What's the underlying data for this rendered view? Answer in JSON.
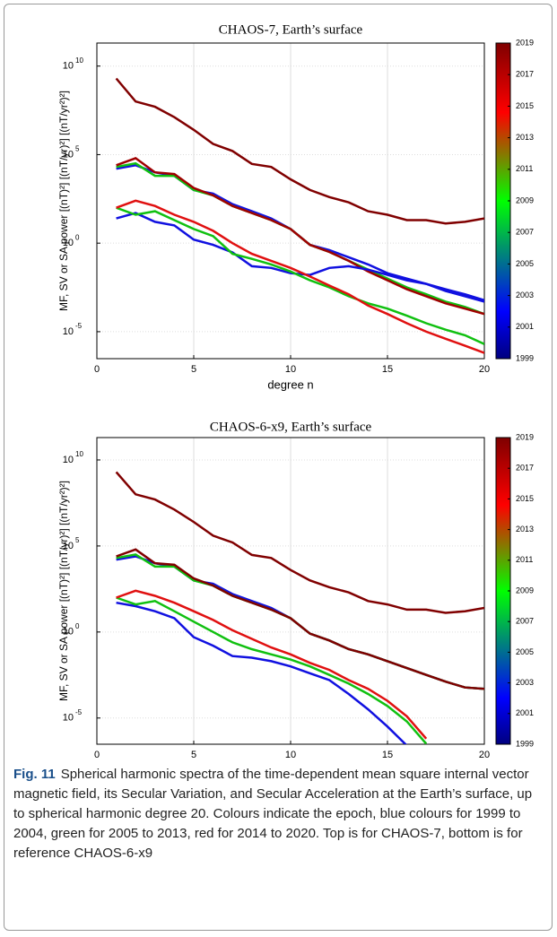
{
  "chart_data": [
    {
      "type": "line",
      "title": "CHAOS-7, Earth’s surface",
      "xlabel": "degree n",
      "ylabel": "MF, SV or SA power [(nT)²] [(nT/yr)²] [(nT/yr²)²]",
      "log_y": true,
      "grid": true,
      "xlim": [
        0,
        20
      ],
      "xticks": [
        0,
        5,
        10,
        15,
        20
      ],
      "ylim": [
        3e-07,
        200000000000.0
      ],
      "yticks": [
        {
          "value": 1e-05,
          "label": "10",
          "exponent": "-5"
        },
        {
          "value": 1,
          "label": "10",
          "exponent": "0"
        },
        {
          "value": 100000.0,
          "label": "10",
          "exponent": "5"
        },
        {
          "value": 10000000000.0,
          "label": "10",
          "exponent": "10"
        }
      ],
      "colorbar": {
        "lim": [
          1999,
          2019
        ],
        "ticks": [
          1999,
          2001,
          2003,
          2005,
          2007,
          2009,
          2011,
          2013,
          2015,
          2017,
          2019
        ]
      },
      "x": [
        1,
        2,
        3,
        4,
        5,
        6,
        7,
        8,
        9,
        10,
        11,
        12,
        13,
        14,
        15,
        16,
        17,
        18,
        19,
        20
      ],
      "series": [
        {
          "color": "#800000",
          "values": [
            2000000000.0,
            100000000.0,
            50000000.0,
            13000000.0,
            2500000.0,
            400000.0,
            160000.0,
            30000.0,
            20000.0,
            4000.0,
            1000.0,
            400,
            200,
            63,
            40,
            20,
            20,
            13,
            16,
            25
          ]
        },
        {
          "color": "#1010e0",
          "values": [
            16000.0,
            25000.0,
            10000.0,
            6300.0,
            1000.0,
            630,
            160,
            63,
            25,
            6.3,
            0.8,
            0.4,
            0.16,
            0.063,
            0.02,
            0.01,
            0.005,
            0.002,
            0.001,
            0.0005
          ]
        },
        {
          "color": "#10c010",
          "values": [
            20000.0,
            32000.0,
            6300.0,
            6300.0,
            1000.0,
            500,
            126,
            50,
            20,
            6.3,
            0.8,
            0.32,
            0.1,
            0.032,
            0.01,
            0.0032,
            0.0013,
            0.0005,
            0.00025,
            0.0001
          ]
        },
        {
          "color": "#a00000",
          "values": [
            25000.0,
            63000.0,
            10000.0,
            8000.0,
            1300.0,
            500,
            126,
            50,
            20,
            6.3,
            0.8,
            0.32,
            0.1,
            0.025,
            0.008,
            0.0025,
            0.001,
            0.0004,
            0.0002,
            0.0001
          ]
        },
        {
          "color": "#1010e0",
          "values": [
            25,
            50,
            16,
            10,
            1.6,
            0.8,
            0.3,
            0.05,
            0.04,
            0.02,
            0.016,
            0.04,
            0.05,
            0.032,
            0.016,
            0.008,
            0.005,
            0.0025,
            0.0013,
            0.0006
          ]
        },
        {
          "color": "#10c010",
          "values": [
            100,
            40,
            63,
            20,
            6.3,
            2.5,
            0.25,
            0.13,
            0.063,
            0.025,
            0.008,
            0.0032,
            0.001,
            0.0004,
            0.0002,
            8e-05,
            3e-05,
            1.3e-05,
            6.3e-06,
            2e-06
          ]
        },
        {
          "color": "#e01010",
          "values": [
            100,
            250,
            126,
            40,
            16,
            5,
            1,
            0.25,
            0.1,
            0.04,
            0.013,
            0.004,
            0.0013,
            0.0003,
            0.0001,
            3e-05,
            1e-05,
            4e-06,
            1.6e-06,
            6.3e-07
          ]
        }
      ]
    },
    {
      "type": "line",
      "title": "CHAOS-6-x9, Earth’s surface",
      "xlabel": "degree n",
      "ylabel": "MF, SV or SA power [(nT)²] [(nT/yr)²] [(nT/yr²)²]",
      "log_y": true,
      "grid": true,
      "xlim": [
        0,
        20
      ],
      "xticks": [
        0,
        5,
        10,
        15,
        20
      ],
      "ylim": [
        3e-07,
        200000000000.0
      ],
      "yticks": [
        {
          "value": 1e-05,
          "label": "10",
          "exponent": "-5"
        },
        {
          "value": 1,
          "label": "10",
          "exponent": "0"
        },
        {
          "value": 100000.0,
          "label": "10",
          "exponent": "5"
        },
        {
          "value": 10000000000.0,
          "label": "10",
          "exponent": "10"
        }
      ],
      "colorbar": {
        "lim": [
          1999,
          2019
        ],
        "ticks": [
          1999,
          2001,
          2003,
          2005,
          2007,
          2009,
          2011,
          2013,
          2015,
          2017,
          2019
        ]
      },
      "x": [
        1,
        2,
        3,
        4,
        5,
        6,
        7,
        8,
        9,
        10,
        11,
        12,
        13,
        14,
        15,
        16,
        17,
        18,
        19,
        20
      ],
      "series": [
        {
          "color": "#800000",
          "values": [
            2000000000.0,
            100000000.0,
            50000000.0,
            13000000.0,
            2500000.0,
            400000.0,
            160000.0,
            30000.0,
            20000.0,
            4000.0,
            1000.0,
            400,
            200,
            63,
            40,
            20,
            20,
            13,
            16,
            25
          ]
        },
        {
          "color": "#1010e0",
          "values": [
            16000.0,
            25000.0,
            10000.0,
            6300.0,
            1000.0,
            630,
            160,
            63,
            25,
            6.3,
            0.8,
            0.32,
            0.1,
            0.05,
            0.02,
            0.008,
            0.0032,
            0.0013,
            0.0006,
            0.0005
          ]
        },
        {
          "color": "#10c010",
          "values": [
            20000.0,
            32000.0,
            6300.0,
            6300.0,
            1000.0,
            500,
            126,
            50,
            20,
            6.3,
            0.8,
            0.32,
            0.1,
            0.05,
            0.02,
            0.008,
            0.0032,
            0.0013,
            0.0006,
            0.0005
          ]
        },
        {
          "color": "#800000",
          "values": [
            25000.0,
            63000.0,
            10000.0,
            8000.0,
            1300.0,
            500,
            126,
            50,
            20,
            6.3,
            0.8,
            0.32,
            0.1,
            0.05,
            0.02,
            0.008,
            0.0032,
            0.0013,
            0.0006,
            0.0005
          ]
        },
        {
          "color": "#1010e0",
          "values": [
            50,
            32,
            16,
            6.3,
            0.5,
            0.16,
            0.04,
            0.032,
            0.02,
            0.01,
            0.004,
            0.0016,
            0.00025,
            3.2e-05,
            3.2e-06,
            2.5e-07,
            null,
            null,
            null,
            null
          ]
        },
        {
          "color": "#10c010",
          "values": [
            100,
            40,
            63,
            16,
            4,
            1,
            0.25,
            0.1,
            0.05,
            0.025,
            0.01,
            0.0032,
            0.001,
            0.00025,
            5e-05,
            6.3e-06,
            3.2e-07,
            null,
            null,
            null
          ]
        },
        {
          "color": "#e01010",
          "values": [
            100,
            250,
            126,
            50,
            16,
            5,
            1.26,
            0.4,
            0.126,
            0.05,
            0.016,
            0.0063,
            0.0016,
            0.0005,
            0.0001,
            1.26e-05,
            6.3e-07,
            null,
            null,
            null
          ]
        }
      ]
    }
  ],
  "caption": {
    "label": "Fig. 11",
    "text": "Spherical harmonic spectra of the time-dependent mean square internal vector magnetic field, its Secular Variation, and Secular Acceleration at the Earth’s surface, up to spherical harmonic degree 20. Colours indicate the epoch, blue colours for 1999 to 2004, green for 2005 to 2013, red for 2014 to 2020. Top is for CHAOS-7, bottom is for reference CHAOS-6-x9"
  }
}
